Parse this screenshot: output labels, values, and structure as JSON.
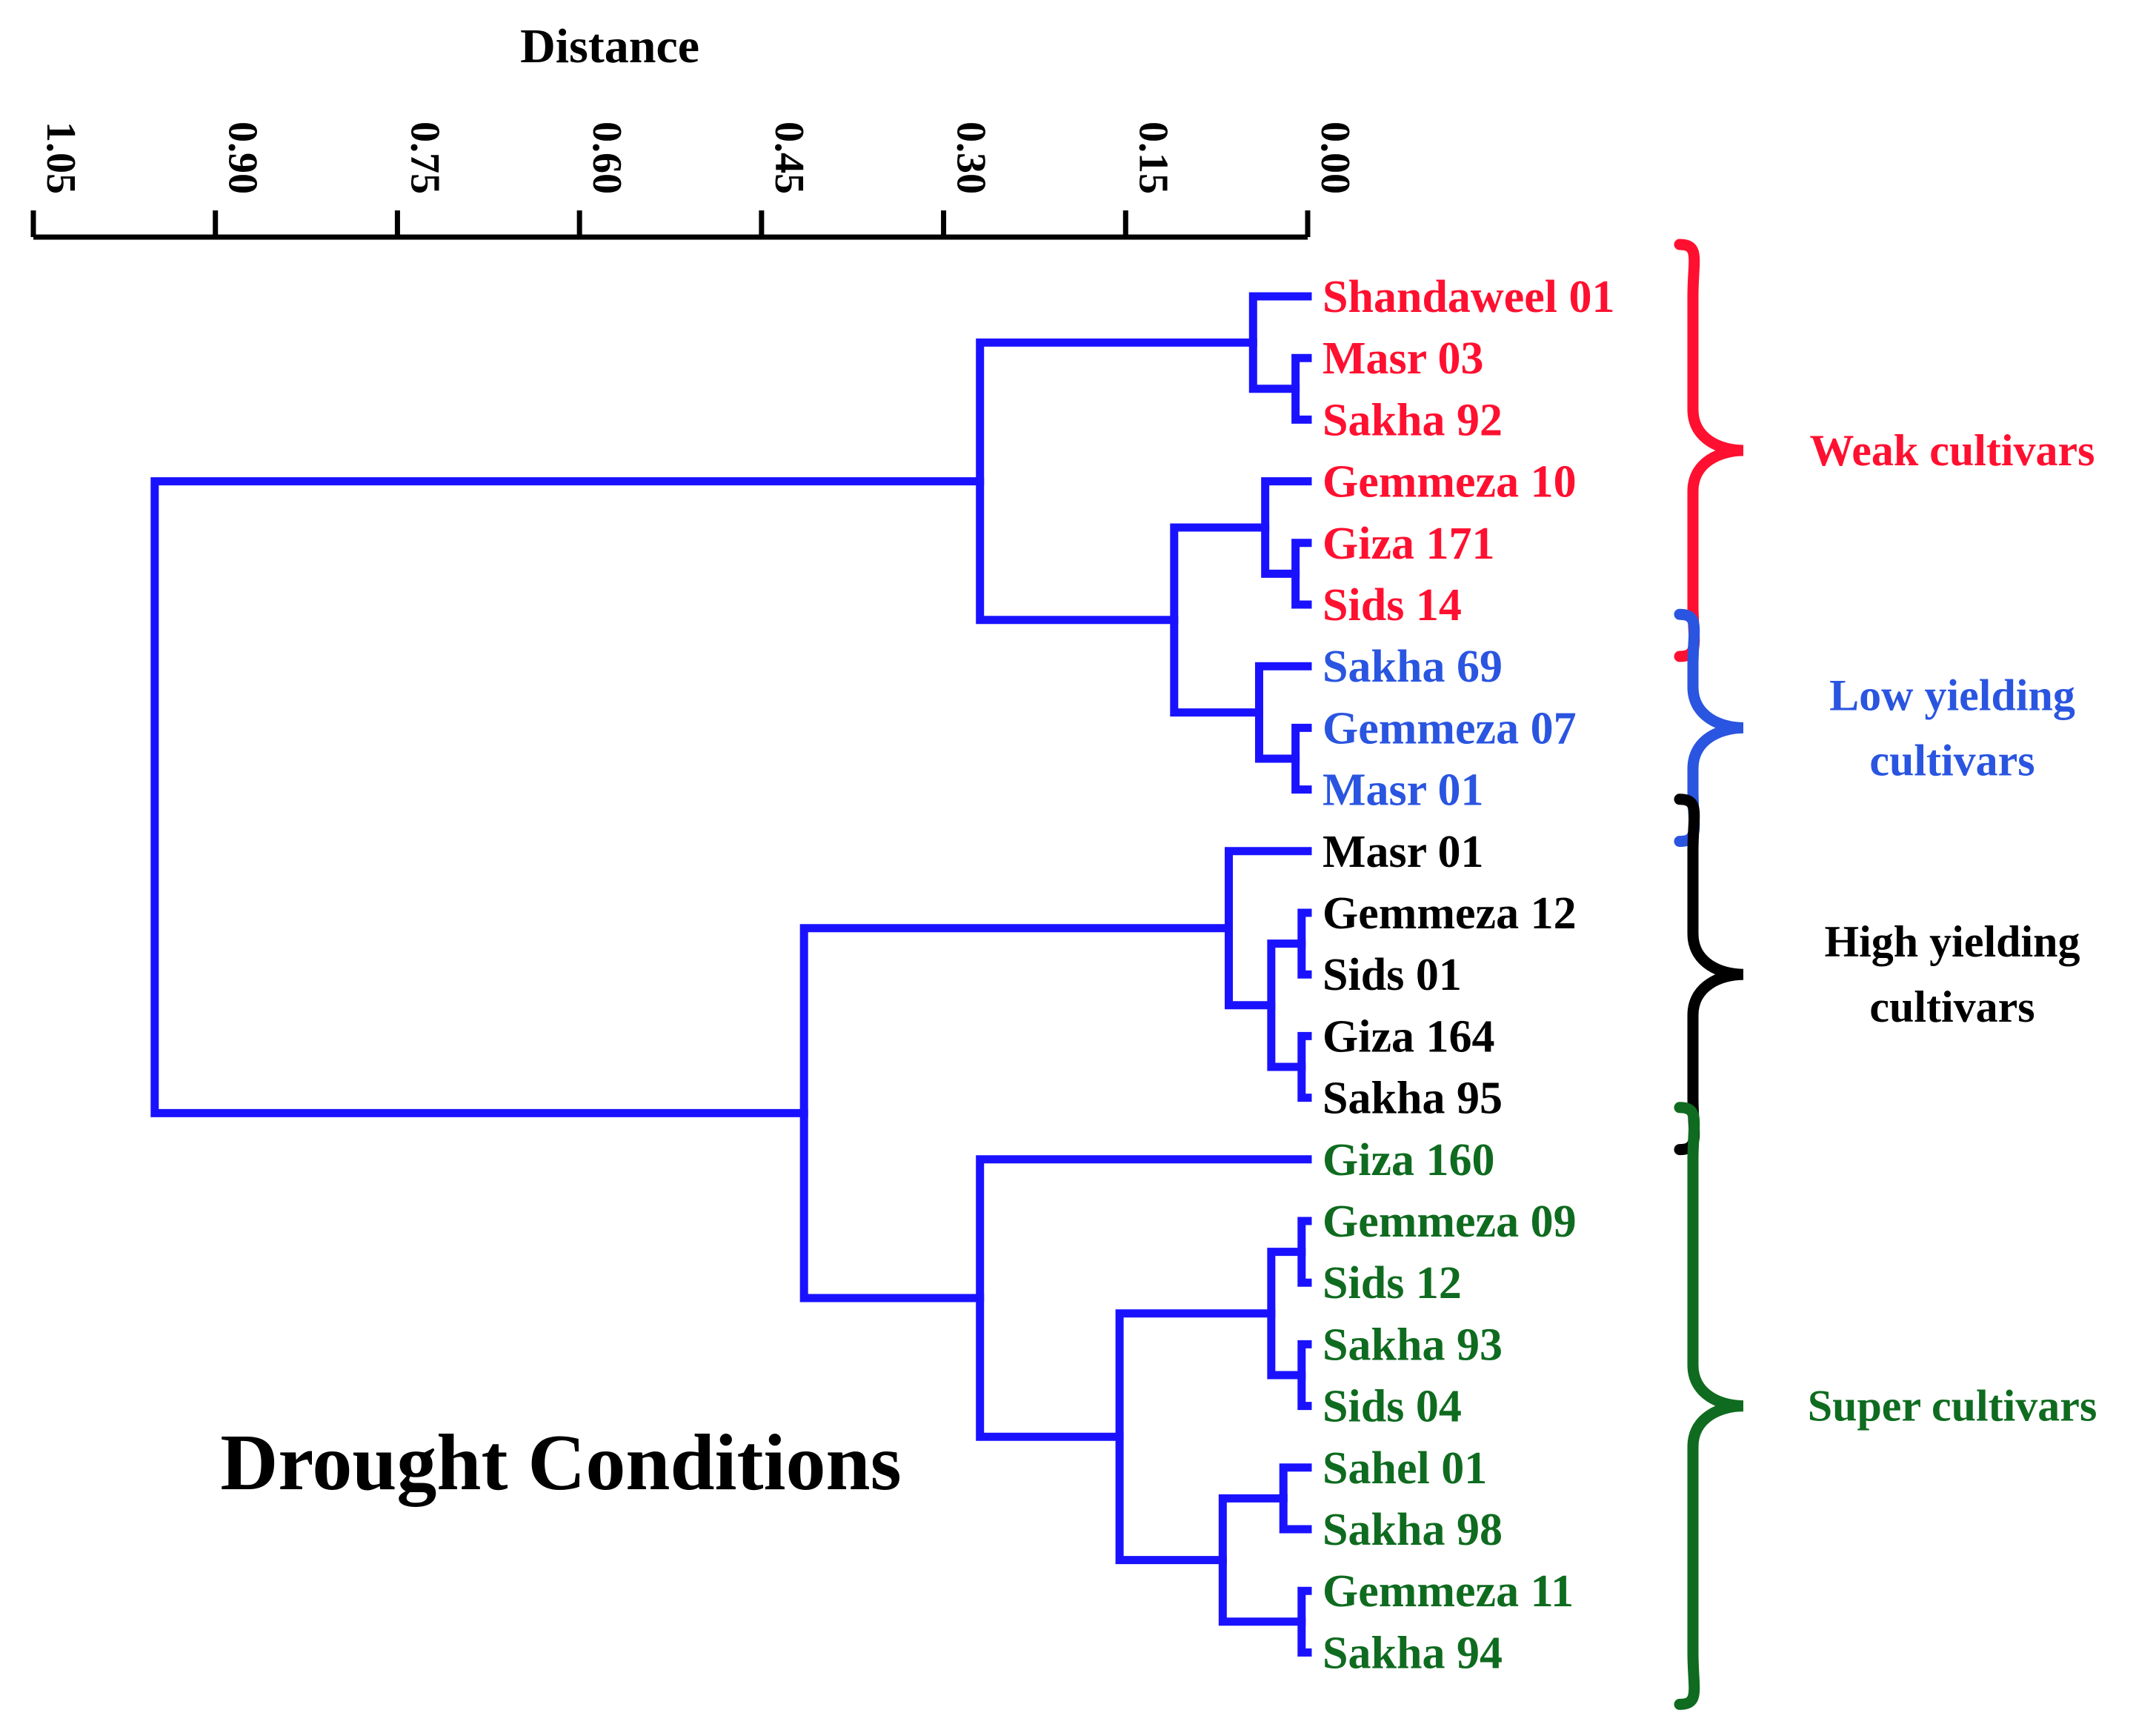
{
  "chart_data": {
    "type": "dendrogram",
    "title": "Drought Conditions",
    "xlabel": "Distance",
    "xlim": [
      1.05,
      0.0
    ],
    "ticks": [
      "1.05",
      "0.90",
      "0.75",
      "0.60",
      "0.45",
      "0.30",
      "0.15",
      "0.00"
    ],
    "branch_color": "#1a12ff",
    "leaves": [
      {
        "label": "Shandaweel 01",
        "group": 0
      },
      {
        "label": "Masr 03",
        "group": 0
      },
      {
        "label": "Sakha 92",
        "group": 0
      },
      {
        "label": "Gemmeza 10",
        "group": 0
      },
      {
        "label": "Giza 171",
        "group": 0
      },
      {
        "label": "Sids 14",
        "group": 0
      },
      {
        "label": "Sakha 69",
        "group": 1
      },
      {
        "label": "Gemmeza 07",
        "group": 1
      },
      {
        "label": "Masr 01",
        "group": 1
      },
      {
        "label": "Masr 01",
        "group": 2
      },
      {
        "label": "Gemmeza 12",
        "group": 2
      },
      {
        "label": "Sids 01",
        "group": 2
      },
      {
        "label": "Giza 164",
        "group": 2
      },
      {
        "label": "Sakha 95",
        "group": 2
      },
      {
        "label": "Giza 160",
        "group": 3
      },
      {
        "label": "Gemmeza 09",
        "group": 3
      },
      {
        "label": "Sids 12",
        "group": 3
      },
      {
        "label": "Sakha 93",
        "group": 3
      },
      {
        "label": "Sids 04",
        "group": 3
      },
      {
        "label": "Sahel 01",
        "group": 3
      },
      {
        "label": "Sakha 98",
        "group": 3
      },
      {
        "label": "Gemmeza 11",
        "group": 3
      },
      {
        "label": "Sakha 94",
        "group": 3
      }
    ],
    "merges": [
      {
        "a": 1,
        "b": 2,
        "height": 0.01
      },
      {
        "a": 0,
        "b": "n0",
        "height": 0.045
      },
      {
        "a": 4,
        "b": 5,
        "height": 0.01
      },
      {
        "a": 3,
        "b": "n2",
        "height": 0.035
      },
      {
        "a": 7,
        "b": 8,
        "height": 0.01
      },
      {
        "a": 6,
        "b": "n4",
        "height": 0.04
      },
      {
        "a": "n3",
        "b": "n5",
        "height": 0.11
      },
      {
        "a": "n1",
        "b": "n6",
        "height": 0.27
      },
      {
        "a": 10,
        "b": 11,
        "height": 0.005
      },
      {
        "a": 12,
        "b": 13,
        "height": 0.005
      },
      {
        "a": "n8",
        "b": "n9",
        "height": 0.03
      },
      {
        "a": 9,
        "b": "n10",
        "height": 0.065
      },
      {
        "a": 15,
        "b": 16,
        "height": 0.005
      },
      {
        "a": 17,
        "b": 18,
        "height": 0.005
      },
      {
        "a": "n12",
        "b": "n13",
        "height": 0.03
      },
      {
        "a": 19,
        "b": 20,
        "height": 0.02
      },
      {
        "a": 21,
        "b": 22,
        "height": 0.005
      },
      {
        "a": "n15",
        "b": "n16",
        "height": 0.07
      },
      {
        "a": "n14",
        "b": "n17",
        "height": 0.155
      },
      {
        "a": 14,
        "b": "n18",
        "height": 0.27
      },
      {
        "a": "n11",
        "b": "n19",
        "height": 0.415
      },
      {
        "a": "n7",
        "b": "n20",
        "height": 0.95
      }
    ],
    "groups": [
      {
        "label": "Weak cultivars",
        "color": "#ff1030",
        "first": 0,
        "last": 5
      },
      {
        "label": "Low yielding cultivars",
        "color": "#2a55e0",
        "first": 6,
        "last": 8
      },
      {
        "label": "High yielding cultivars",
        "color": "#000000",
        "first": 9,
        "last": 13
      },
      {
        "label": "Super cultivars",
        "color": "#0f6b1f",
        "first": 14,
        "last": 22
      }
    ]
  }
}
